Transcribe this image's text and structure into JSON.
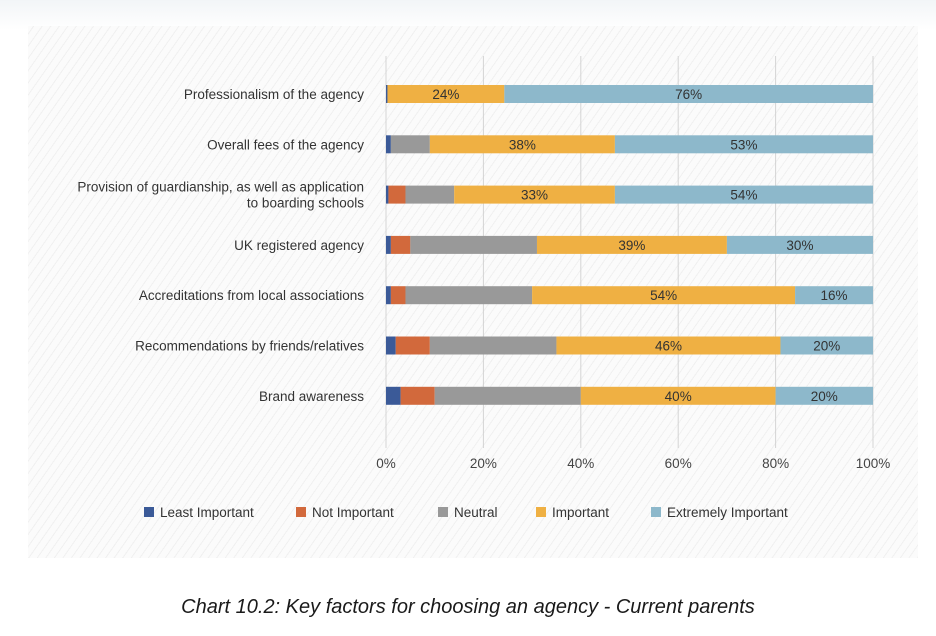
{
  "caption": "Chart 10.2: Key factors for choosing an agency - Current parents",
  "chart_data": {
    "type": "bar",
    "orientation": "horizontal",
    "stacked": true,
    "categories": [
      [
        "Professionalism of the agency"
      ],
      [
        "Overall fees of the agency"
      ],
      [
        "Provision of guardianship, as well as application",
        "to boarding schools"
      ],
      [
        "UK registered agency"
      ],
      [
        "Accreditations from local associations"
      ],
      [
        "Recommendations by friends/relatives"
      ],
      [
        "Brand awareness"
      ]
    ],
    "series": [
      {
        "name": "Least Important",
        "color": "#3b5a98",
        "values": [
          0.3,
          1,
          0.5,
          1,
          1,
          2,
          3
        ]
      },
      {
        "name": "Not Important",
        "color": "#d2693c",
        "values": [
          0,
          0,
          3.5,
          4,
          3,
          7,
          7
        ]
      },
      {
        "name": "Neutral",
        "color": "#999999",
        "values": [
          0,
          8,
          10,
          26,
          26,
          26,
          30
        ]
      },
      {
        "name": "Important",
        "color": "#efb043",
        "values": [
          24,
          38,
          33,
          39,
          54,
          46,
          40
        ]
      },
      {
        "name": "Extremely Important",
        "color": "#8db8cb",
        "values": [
          76,
          53,
          54,
          30,
          16,
          20,
          20
        ]
      }
    ],
    "data_labels": [
      [
        "24%",
        "76%"
      ],
      [
        "38%",
        "53%"
      ],
      [
        "33%",
        "54%"
      ],
      [
        "39%",
        "30%"
      ],
      [
        "54%",
        "16%"
      ],
      [
        "46%",
        "20%"
      ],
      [
        "40%",
        "20%"
      ]
    ],
    "xlim": [
      0,
      100
    ],
    "xticks": [
      0,
      20,
      40,
      60,
      80,
      100
    ],
    "xtick_labels": [
      "0%",
      "20%",
      "40%",
      "60%",
      "80%",
      "100%"
    ],
    "grid": true,
    "legend_position": "bottom",
    "title": "",
    "xlabel": "",
    "ylabel": ""
  }
}
